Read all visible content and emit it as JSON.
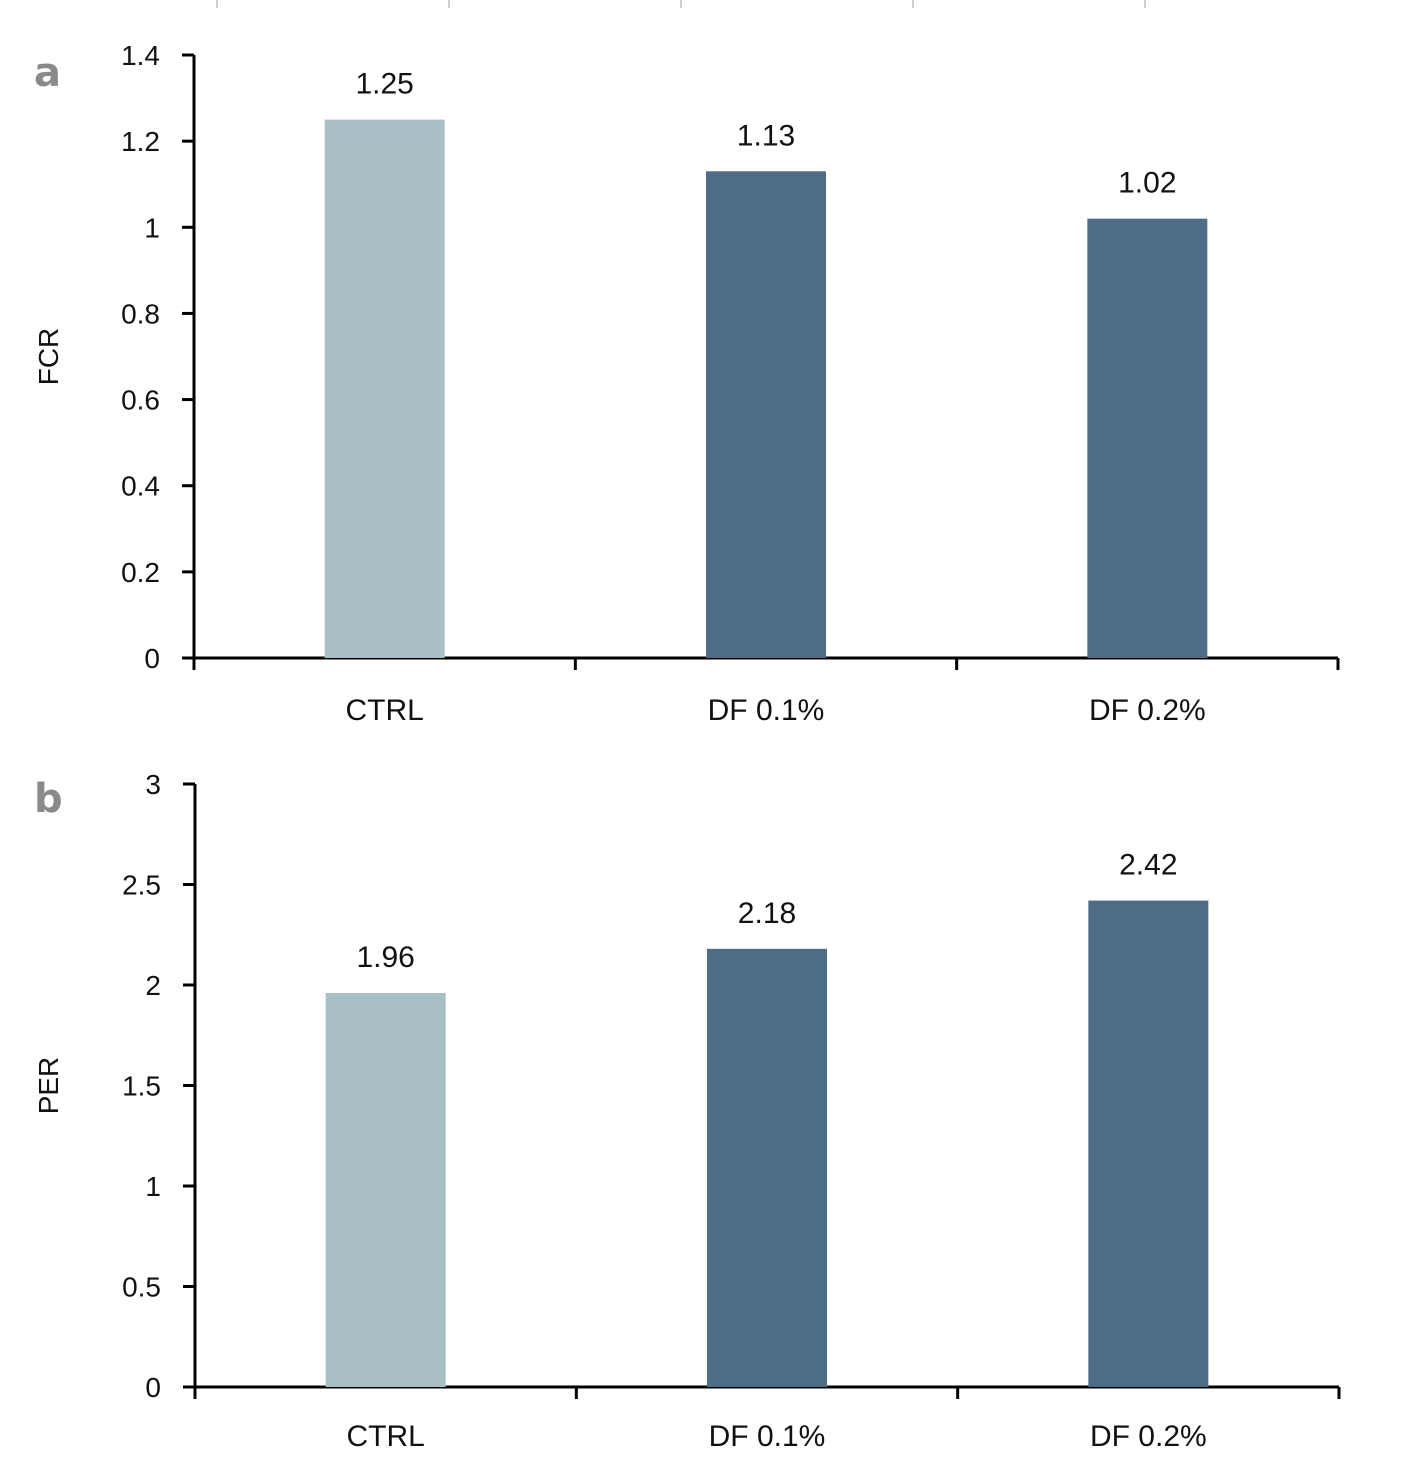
{
  "colors": {
    "control": "#a8bfc6",
    "treatment": "#4e6b88"
  },
  "chart_data": [
    {
      "type": "bar",
      "panel_label": "a",
      "categories": [
        "CTRL",
        "DF 0.1%",
        "DF 0.2%"
      ],
      "values": [
        1.25,
        1.13,
        1.02
      ],
      "data_labels": [
        "1.25",
        "1.13",
        "1.02"
      ],
      "ylabel": "FCR",
      "xlabel": "",
      "ylim": [
        0,
        1.4
      ],
      "yticks": [
        0,
        0.2,
        0.4,
        0.6,
        0.8,
        1,
        1.2,
        1.4
      ],
      "ytick_labels": [
        "0",
        "0.2",
        "0.4",
        "0.6",
        "0.8",
        "1",
        "1.2",
        "1.4"
      ],
      "grid": false,
      "legend": "none"
    },
    {
      "type": "bar",
      "panel_label": "b",
      "categories": [
        "CTRL",
        "DF 0.1%",
        "DF 0.2%"
      ],
      "values": [
        1.96,
        2.18,
        2.42
      ],
      "data_labels": [
        "1.96",
        "2.18",
        "2.42"
      ],
      "ylabel": "PER",
      "xlabel": "",
      "ylim": [
        0,
        3
      ],
      "yticks": [
        0,
        0.5,
        1,
        1.5,
        2,
        2.5,
        3
      ],
      "ytick_labels": [
        "0",
        "0.5",
        "1",
        "1.5",
        "2",
        "2.5",
        "3"
      ],
      "grid": false,
      "legend": "none"
    }
  ]
}
